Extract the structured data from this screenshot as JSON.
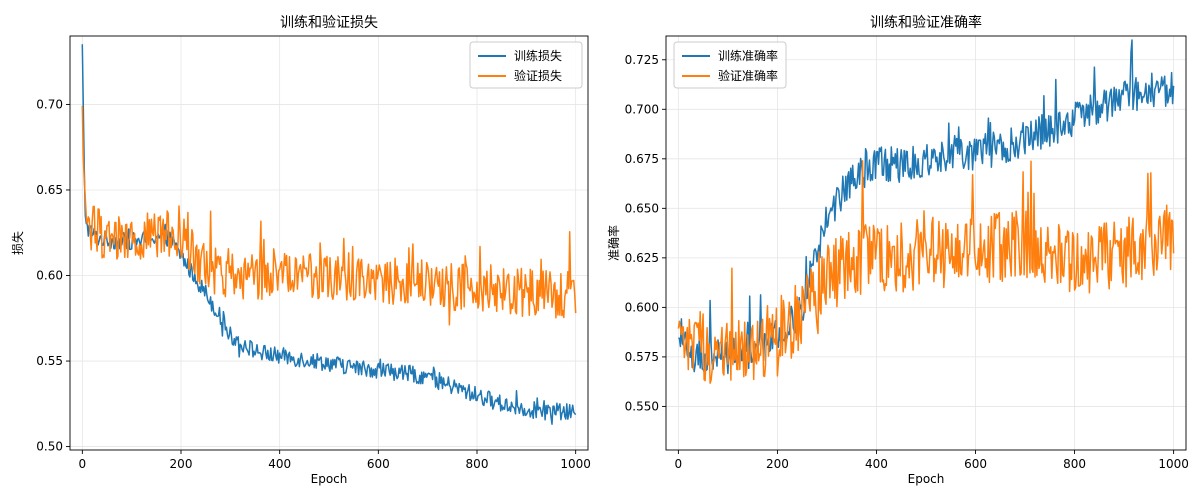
{
  "chart_data": [
    {
      "type": "line",
      "title": "训练和验证损失",
      "xlabel": "Epoch",
      "ylabel": "损失",
      "xlim": [
        -25,
        1025
      ],
      "ylim": [
        0.498,
        0.74
      ],
      "xticks": [
        0,
        200,
        400,
        600,
        800,
        1000
      ],
      "yticks": [
        0.5,
        0.55,
        0.6,
        0.65,
        0.7
      ],
      "ytick_labels": [
        "0.50",
        "0.55",
        "0.60",
        "0.65",
        "0.70"
      ],
      "grid": true,
      "legend_position": "top-right",
      "series": [
        {
          "name": "训练损失",
          "color": "#1f77b4",
          "x": [
            0,
            5,
            10,
            20,
            30,
            50,
            75,
            100,
            125,
            150,
            175,
            200,
            225,
            250,
            275,
            300,
            325,
            350,
            375,
            400,
            450,
            500,
            550,
            600,
            650,
            700,
            750,
            800,
            850,
            900,
            950,
            1000
          ],
          "y": [
            0.733,
            0.64,
            0.628,
            0.625,
            0.622,
            0.621,
            0.62,
            0.62,
            0.621,
            0.623,
            0.622,
            0.612,
            0.6,
            0.59,
            0.578,
            0.565,
            0.56,
            0.556,
            0.554,
            0.553,
            0.551,
            0.549,
            0.546,
            0.545,
            0.543,
            0.541,
            0.535,
            0.53,
            0.525,
            0.522,
            0.52,
            0.52
          ],
          "noise": 0.005
        },
        {
          "name": "验证损失",
          "color": "#ff7f0e",
          "x": [
            0,
            5,
            10,
            20,
            50,
            100,
            150,
            200,
            250,
            300,
            350,
            400,
            450,
            500,
            600,
            700,
            800,
            900,
            1000
          ],
          "y": [
            0.693,
            0.64,
            0.632,
            0.628,
            0.622,
            0.62,
            0.625,
            0.622,
            0.605,
            0.6,
            0.6,
            0.6,
            0.6,
            0.6,
            0.598,
            0.595,
            0.592,
            0.59,
            0.588
          ],
          "noise": 0.014
        }
      ]
    },
    {
      "type": "line",
      "title": "训练和验证准确率",
      "xlabel": "Epoch",
      "ylabel": "准确率",
      "xlim": [
        -25,
        1025
      ],
      "ylim": [
        0.528,
        0.737
      ],
      "xticks": [
        0,
        200,
        400,
        600,
        800,
        1000
      ],
      "yticks": [
        0.55,
        0.575,
        0.6,
        0.625,
        0.65,
        0.675,
        0.7,
        0.725
      ],
      "ytick_labels": [
        "0.550",
        "0.575",
        "0.600",
        "0.625",
        "0.650",
        "0.675",
        "0.700",
        "0.725"
      ],
      "grid": true,
      "legend_position": "top-left",
      "series": [
        {
          "name": "训练准确率",
          "color": "#1f77b4",
          "x": [
            0,
            5,
            20,
            50,
            100,
            150,
            200,
            250,
            270,
            300,
            350,
            400,
            450,
            500,
            550,
            600,
            650,
            700,
            750,
            800,
            850,
            900,
            950,
            1000
          ],
          "y": [
            0.58,
            0.59,
            0.575,
            0.575,
            0.575,
            0.578,
            0.585,
            0.6,
            0.618,
            0.645,
            0.665,
            0.673,
            0.672,
            0.675,
            0.678,
            0.678,
            0.68,
            0.685,
            0.69,
            0.695,
            0.7,
            0.705,
            0.71,
            0.71
          ],
          "noise": 0.009
        },
        {
          "name": "验证准确率",
          "color": "#ff7f0e",
          "x": [
            0,
            50,
            100,
            150,
            200,
            250,
            300,
            350,
            400,
            450,
            500,
            550,
            600,
            650,
            700,
            750,
            800,
            850,
            900,
            950,
            1000
          ],
          "y": [
            0.58,
            0.58,
            0.578,
            0.578,
            0.582,
            0.6,
            0.615,
            0.622,
            0.625,
            0.625,
            0.628,
            0.628,
            0.628,
            0.63,
            0.632,
            0.628,
            0.625,
            0.625,
            0.628,
            0.632,
            0.635
          ],
          "noise": 0.018
        }
      ]
    }
  ]
}
